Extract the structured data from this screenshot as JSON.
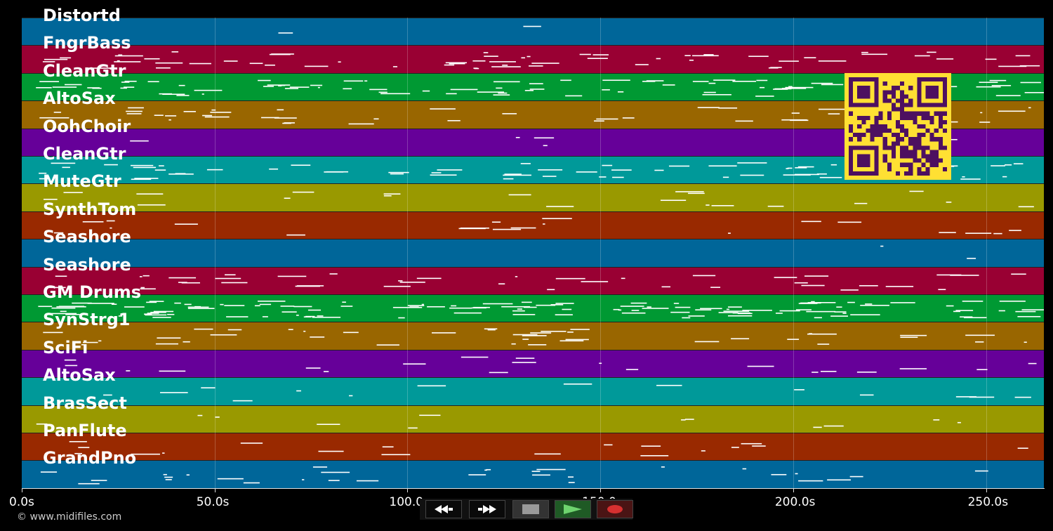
{
  "tracks": [
    {
      "name": "Distortd",
      "color": "#006699"
    },
    {
      "name": "FngrBass",
      "color": "#990033"
    },
    {
      "name": "CleanGtr",
      "color": "#009933"
    },
    {
      "name": "AltoSax",
      "color": "#996600"
    },
    {
      "name": "OohChoir",
      "color": "#660099"
    },
    {
      "name": "CleanGtr",
      "color": "#009999"
    },
    {
      "name": "MuteGtr",
      "color": "#999900"
    },
    {
      "name": "SynthTom",
      "color": "#992900"
    },
    {
      "name": "Seashore",
      "color": "#006699"
    },
    {
      "name": "Seashore",
      "color": "#990033"
    },
    {
      "name": "GM Drums",
      "color": "#009933"
    },
    {
      "name": "SynStrg1",
      "color": "#996600"
    },
    {
      "name": "SciFi",
      "color": "#660099"
    },
    {
      "name": "AltoSax",
      "color": "#009999"
    },
    {
      "name": "BrasSect",
      "color": "#999900"
    },
    {
      "name": "PanFlute",
      "color": "#992900"
    },
    {
      "name": "GrandPno",
      "color": "#006699"
    }
  ],
  "axis": {
    "ticks": [
      {
        "label": "0.0s",
        "seconds": 0
      },
      {
        "label": "50.0s",
        "seconds": 50
      },
      {
        "label": "100.0s",
        "seconds": 100
      },
      {
        "label": "150.0s",
        "seconds": 150
      },
      {
        "label": "200.0s",
        "seconds": 200
      },
      {
        "label": "250.0s",
        "seconds": 250
      }
    ],
    "max_seconds": 265
  },
  "copyright": "© www.midifiles.com",
  "transport": {
    "rewind_icon": "rewind-icon",
    "fast_forward_icon": "fast-forward-icon",
    "stop_icon": "stop-icon",
    "play_icon": "play-icon",
    "record_icon": "record-icon"
  },
  "colors": {
    "background": "#000000",
    "note": "#ffffff",
    "qr_foreground": "#4d1060",
    "qr_background": "#ffe033"
  }
}
